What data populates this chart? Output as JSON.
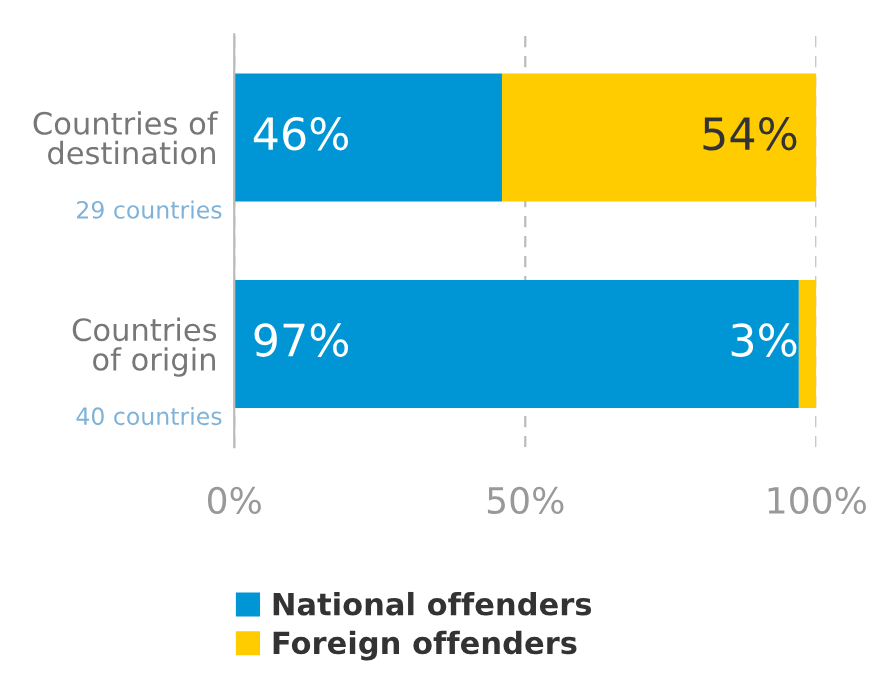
{
  "chart_data": {
    "type": "bar",
    "orientation": "horizontal",
    "stacked": true,
    "categories": [
      "Countries of\ndestination",
      "Countries\nof origin"
    ],
    "series": [
      {
        "name": "National offenders",
        "color": "#0096d6",
        "values": [
          46,
          97
        ],
        "value_labels": [
          "46%",
          "97%"
        ]
      },
      {
        "name": "Foreign offenders",
        "color": "#ffcc00",
        "values": [
          54,
          3
        ],
        "value_labels": [
          "54%",
          "3%"
        ]
      }
    ],
    "xlim": [
      0,
      100
    ],
    "xticks": [
      {
        "value": 0,
        "label": "0%"
      },
      {
        "value": 50,
        "label": "50%"
      },
      {
        "value": 100,
        "label": "100%"
      }
    ],
    "grid": "x",
    "legend": "bottom",
    "annotations": [
      "29 countries",
      "40 countries"
    ]
  }
}
